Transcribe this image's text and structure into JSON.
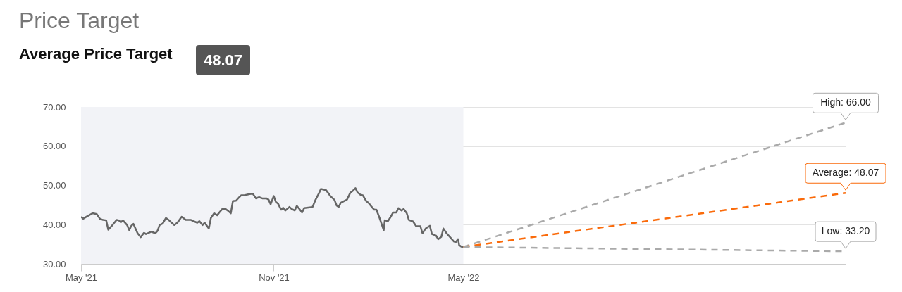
{
  "chart_data": {
    "type": "line",
    "title": "Price Target",
    "subtitle": "Average Price Target",
    "annotations": [
      "48.07"
    ],
    "xlim": [
      "2021-05-01",
      "2023-05-01"
    ],
    "xticks": [
      {
        "value": "2021-05-01",
        "label": "May '21"
      },
      {
        "value": "2021-11-01",
        "label": "Nov '21"
      },
      {
        "value": "2022-05-01",
        "label": "May '22"
      }
    ],
    "ylim": [
      30,
      70
    ],
    "yticks": [
      {
        "value": 30,
        "label": "30.00"
      },
      {
        "value": 40,
        "label": "40.00"
      },
      {
        "value": 50,
        "label": "50.00"
      },
      {
        "value": 60,
        "label": "60.00"
      },
      {
        "value": 70,
        "label": "70.00"
      }
    ],
    "grid": "y",
    "bands": [
      {
        "axis": "x",
        "from": "2021-05-01",
        "to": "2022-05-01",
        "color": "#f2f3f7"
      }
    ],
    "series": [
      {
        "color": "#666666",
        "x": [
          "2021-05-01",
          "2021-05-03",
          "2021-05-06",
          "2021-05-12",
          "2021-05-16",
          "2021-05-19",
          "2021-05-22",
          "2021-05-25",
          "2021-05-27",
          "2021-05-31",
          "2021-06-04",
          "2021-06-06",
          "2021-06-08",
          "2021-06-10",
          "2021-06-14",
          "2021-06-16",
          "2021-06-18",
          "2021-06-20",
          "2021-06-24",
          "2021-06-27",
          "2021-06-30",
          "2021-07-02",
          "2021-07-07",
          "2021-07-11",
          "2021-07-13",
          "2021-07-15",
          "2021-07-18",
          "2021-07-21",
          "2021-07-24",
          "2021-07-29",
          "2021-08-01",
          "2021-08-05",
          "2021-08-09",
          "2021-08-14",
          "2021-08-17",
          "2021-08-20",
          "2021-08-22",
          "2021-08-25",
          "2021-08-27",
          "2021-08-31",
          "2021-09-02",
          "2021-09-05",
          "2021-09-08",
          "2021-09-10",
          "2021-09-13",
          "2021-09-16",
          "2021-09-18",
          "2021-09-21",
          "2021-09-23",
          "2021-09-26",
          "2021-09-29",
          "2021-10-01",
          "2021-10-04",
          "2021-10-09",
          "2021-10-12",
          "2021-10-15",
          "2021-10-18",
          "2021-10-21",
          "2021-10-25",
          "2021-10-27",
          "2021-10-29",
          "2021-11-01",
          "2021-11-03",
          "2021-11-05",
          "2021-11-08",
          "2021-11-10",
          "2021-11-12",
          "2021-11-16",
          "2021-11-18",
          "2021-11-21",
          "2021-11-23",
          "2021-11-26",
          "2021-11-28",
          "2021-11-30",
          "2021-12-08",
          "2021-12-11",
          "2021-12-14",
          "2021-12-16",
          "2021-12-21",
          "2021-12-25",
          "2021-12-29",
          "2021-12-31",
          "2022-01-02",
          "2022-01-04",
          "2022-01-10",
          "2022-01-13",
          "2022-01-15",
          "2022-01-18",
          "2022-01-20",
          "2022-01-23",
          "2022-01-25",
          "2022-01-28",
          "2022-01-31",
          "2022-02-02",
          "2022-02-05",
          "2022-02-07",
          "2022-02-10",
          "2022-02-14",
          "2022-02-15",
          "2022-02-18",
          "2022-02-20",
          "2022-02-23",
          "2022-02-26",
          "2022-02-28",
          "2022-03-03",
          "2022-03-05",
          "2022-03-08",
          "2022-03-10",
          "2022-03-14",
          "2022-03-17",
          "2022-03-21",
          "2022-03-23",
          "2022-03-26",
          "2022-03-30",
          "2022-04-01",
          "2022-04-05",
          "2022-04-07",
          "2022-04-10",
          "2022-04-12",
          "2022-04-15",
          "2022-04-19",
          "2022-04-22",
          "2022-04-24",
          "2022-04-26",
          "2022-04-27",
          "2022-04-29",
          "2022-05-01"
        ],
        "values": [
          42.0,
          41.5,
          42.0,
          42.9,
          42.7,
          41.5,
          41.2,
          41.1,
          38.7,
          39.9,
          41.2,
          41.1,
          40.6,
          41.1,
          39.9,
          38.6,
          39.7,
          40.2,
          37.8,
          36.8,
          37.9,
          37.6,
          38.2,
          37.8,
          38.4,
          39.9,
          40.3,
          41.7,
          41.1,
          39.9,
          40.5,
          42.0,
          41.2,
          41.2,
          40.8,
          40.5,
          40.9,
          39.9,
          40.5,
          39.0,
          41.7,
          42.9,
          42.4,
          43.1,
          44.0,
          44.0,
          43.6,
          42.9,
          46.0,
          46.1,
          47.0,
          47.5,
          47.5,
          47.8,
          47.9,
          46.7,
          47.0,
          46.7,
          46.7,
          46.4,
          45.2,
          47.3,
          45.8,
          45.4,
          43.8,
          44.3,
          43.6,
          44.5,
          44.0,
          43.6,
          44.8,
          43.8,
          43.1,
          44.2,
          44.5,
          46.4,
          47.9,
          49.1,
          48.8,
          47.3,
          46.3,
          44.9,
          44.5,
          45.6,
          46.4,
          48.1,
          48.5,
          49.3,
          48.2,
          47.6,
          47.5,
          46.1,
          45.4,
          44.7,
          43.8,
          43.8,
          41.7,
          38.6,
          41.1,
          40.9,
          41.7,
          43.1,
          43.1,
          44.2,
          43.6,
          44.0,
          42.9,
          41.2,
          40.8,
          39.6,
          39.6,
          37.8,
          39.0,
          39.7,
          37.6,
          37.2,
          36.3,
          36.9,
          39.0,
          37.8,
          36.6,
          35.7,
          35.6,
          36.3,
          34.8,
          34.4,
          34.3
        ]
      },
      {
        "color": "#aaaaaa",
        "line_style": "dashed",
        "x": [
          "2022-05-01",
          "2023-05-01"
        ],
        "values": [
          34.3,
          66.0
        ],
        "value_labels": [
          null,
          "High: 66.00"
        ]
      },
      {
        "color": "#fa6a0a",
        "line_style": "dashed",
        "x": [
          "2022-05-01",
          "2023-05-01"
        ],
        "values": [
          34.3,
          48.07
        ],
        "value_labels": [
          null,
          "Average: 48.07"
        ]
      },
      {
        "color": "#aaaaaa",
        "line_style": "dashed",
        "x": [
          "2022-05-01",
          "2023-05-01"
        ],
        "values": [
          34.3,
          33.2
        ],
        "value_labels": [
          null,
          "Low: 33.20"
        ]
      }
    ]
  }
}
